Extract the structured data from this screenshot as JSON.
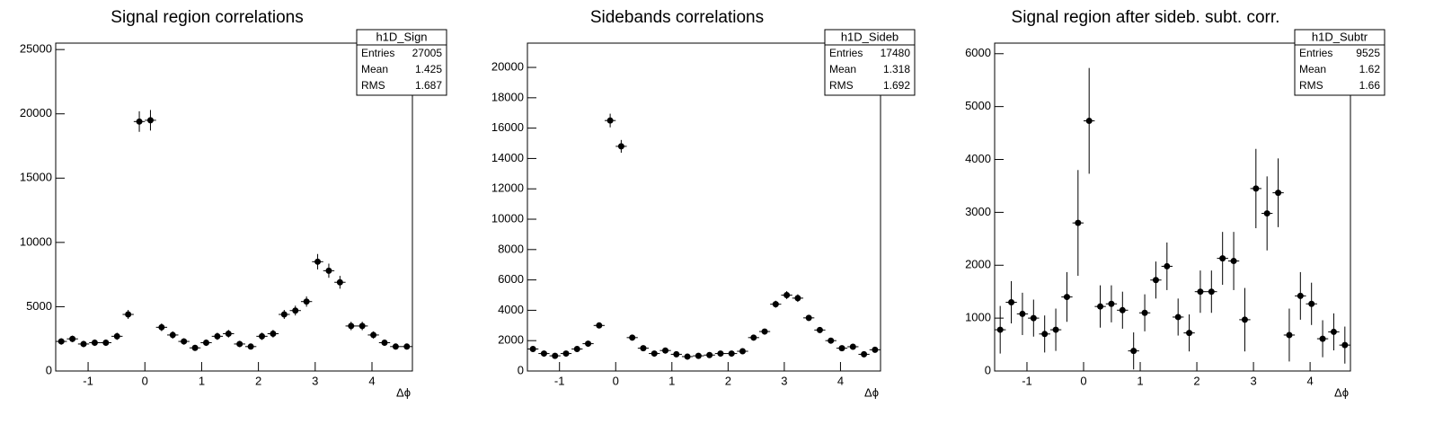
{
  "chart_data": [
    {
      "type": "histogram",
      "title": "Signal region correlations",
      "xlabel": "Δϕ",
      "bins": [
        -1.5708,
        -1.3744,
        -1.1781,
        -0.9817,
        -0.7854,
        -0.589,
        -0.3927,
        -0.1963,
        0,
        0.1963,
        0.3927,
        0.589,
        0.7854,
        0.9817,
        1.1781,
        1.3744,
        1.5708,
        1.7671,
        1.9635,
        2.1598,
        2.3562,
        2.5525,
        2.7489,
        2.9452,
        3.1416,
        3.3379,
        3.5343,
        3.7306,
        3.927,
        4.1233,
        4.3197,
        4.516,
        4.7124
      ],
      "values": [
        2300,
        2500,
        2100,
        2200,
        2200,
        2700,
        4400,
        19400,
        19500,
        3400,
        2800,
        2300,
        1800,
        2200,
        2700,
        2900,
        2100,
        1900,
        2700,
        2900,
        4400,
        4700,
        5400,
        8500,
        7800,
        6900,
        3500,
        3500,
        2800,
        2200,
        1900,
        1900
      ],
      "errors": [
        250,
        250,
        250,
        250,
        250,
        280,
        350,
        800,
        800,
        300,
        280,
        250,
        230,
        250,
        280,
        300,
        250,
        230,
        280,
        300,
        350,
        380,
        400,
        600,
        550,
        500,
        330,
        330,
        280,
        250,
        230,
        230
      ],
      "xlim": [
        -1.5708,
        4.7124
      ],
      "xticks": [
        -1,
        0,
        1,
        2,
        3,
        4
      ],
      "ylim": [
        0,
        25500
      ],
      "yticks": [
        0,
        5000,
        10000,
        15000,
        20000,
        25000
      ],
      "stats": {
        "name": "h1D_Sign",
        "rows": [
          [
            "Entries",
            "27005"
          ],
          [
            "Mean",
            "1.425"
          ],
          [
            "RMS",
            "1.687"
          ]
        ]
      }
    },
    {
      "type": "histogram",
      "title": "Sidebands correlations",
      "xlabel": "Δϕ",
      "bins": [
        -1.5708,
        -1.3744,
        -1.1781,
        -0.9817,
        -0.7854,
        -0.589,
        -0.3927,
        -0.1963,
        0,
        0.1963,
        0.3927,
        0.589,
        0.7854,
        0.9817,
        1.1781,
        1.3744,
        1.5708,
        1.7671,
        1.9635,
        2.1598,
        2.3562,
        2.5525,
        2.7489,
        2.9452,
        3.1416,
        3.3379,
        3.5343,
        3.7306,
        3.927,
        4.1233,
        4.3197,
        4.516,
        4.7124
      ],
      "values": [
        1450,
        1150,
        1000,
        1150,
        1450,
        1800,
        3000,
        16500,
        14800,
        2200,
        1500,
        1150,
        1350,
        1100,
        950,
        1000,
        1050,
        1150,
        1150,
        1300,
        2200,
        2600,
        4400,
        5000,
        4800,
        3500,
        2700,
        2000,
        1500,
        1600,
        1100,
        1400
      ],
      "errors": [
        120,
        110,
        100,
        110,
        120,
        140,
        180,
        450,
        420,
        150,
        120,
        110,
        120,
        110,
        100,
        100,
        100,
        110,
        110,
        115,
        150,
        170,
        230,
        260,
        250,
        200,
        170,
        150,
        120,
        130,
        110,
        120
      ],
      "xlim": [
        -1.5708,
        4.7124
      ],
      "xticks": [
        -1,
        0,
        1,
        2,
        3,
        4
      ],
      "ylim": [
        0,
        21600
      ],
      "yticks": [
        0,
        2000,
        4000,
        6000,
        8000,
        10000,
        12000,
        14000,
        16000,
        18000,
        20000
      ],
      "stats": {
        "name": "h1D_Sideb",
        "rows": [
          [
            "Entries",
            "17480"
          ],
          [
            "Mean",
            "1.318"
          ],
          [
            "RMS",
            "1.692"
          ]
        ]
      }
    },
    {
      "type": "histogram",
      "title": "Signal region after sideb. subt. corr.",
      "xlabel": "Δϕ",
      "bins": [
        -1.5708,
        -1.3744,
        -1.1781,
        -0.9817,
        -0.7854,
        -0.589,
        -0.3927,
        -0.1963,
        0,
        0.1963,
        0.3927,
        0.589,
        0.7854,
        0.9817,
        1.1781,
        1.3744,
        1.5708,
        1.7671,
        1.9635,
        2.1598,
        2.3562,
        2.5525,
        2.7489,
        2.9452,
        3.1416,
        3.3379,
        3.5343,
        3.7306,
        3.927,
        4.1233,
        4.3197,
        4.516,
        4.7124
      ],
      "values": [
        780,
        1300,
        1080,
        1000,
        700,
        780,
        1400,
        2800,
        4730,
        1220,
        1270,
        1150,
        380,
        1100,
        1720,
        1980,
        1020,
        720,
        1500,
        1500,
        2130,
        2080,
        970,
        3450,
        2980,
        3370,
        680,
        1420,
        1270,
        610,
        740,
        490
      ],
      "errors": [
        450,
        400,
        400,
        350,
        350,
        400,
        470,
        1000,
        1000,
        400,
        350,
        350,
        350,
        350,
        350,
        450,
        350,
        350,
        400,
        400,
        500,
        550,
        600,
        750,
        700,
        650,
        500,
        450,
        400,
        350,
        350,
        350
      ],
      "xlim": [
        -1.5708,
        4.7124
      ],
      "xticks": [
        -1,
        0,
        1,
        2,
        3,
        4
      ],
      "ylim": [
        0,
        6200
      ],
      "yticks": [
        0,
        1000,
        2000,
        3000,
        4000,
        5000,
        6000
      ],
      "stats": {
        "name": "h1D_Subtr",
        "rows": [
          [
            "Entries",
            "9525"
          ],
          [
            "Mean",
            "1.62"
          ],
          [
            "RMS",
            "1.66"
          ]
        ]
      }
    }
  ]
}
